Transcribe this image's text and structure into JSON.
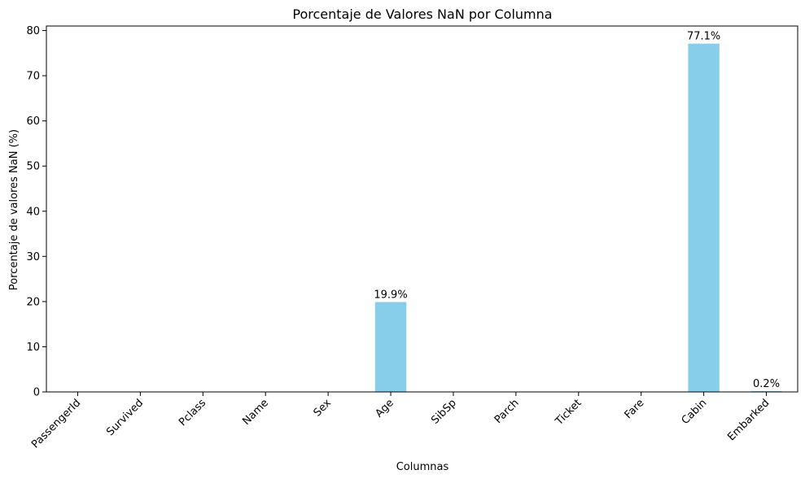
{
  "chart_data": {
    "type": "bar",
    "title": "Porcentaje de Valores NaN por Columna",
    "xlabel": "Columnas",
    "ylabel": "Porcentaje de valores NaN (%)",
    "categories": [
      "PassengerId",
      "Survived",
      "Pclass",
      "Name",
      "Sex",
      "Age",
      "SibSp",
      "Parch",
      "Ticket",
      "Fare",
      "Cabin",
      "Embarked"
    ],
    "values": [
      0,
      0,
      0,
      0,
      0,
      19.9,
      0,
      0,
      0,
      0,
      77.1,
      0.2
    ],
    "data_labels": [
      "",
      "",
      "",
      "",
      "",
      "19.9%",
      "",
      "",
      "",
      "",
      "77.1%",
      "0.2%"
    ],
    "yticks": [
      0,
      10,
      20,
      30,
      40,
      50,
      60,
      70,
      80
    ],
    "ylim": [
      0,
      81
    ],
    "bar_color": "#87ceeb",
    "grid": false,
    "legend": "none"
  }
}
